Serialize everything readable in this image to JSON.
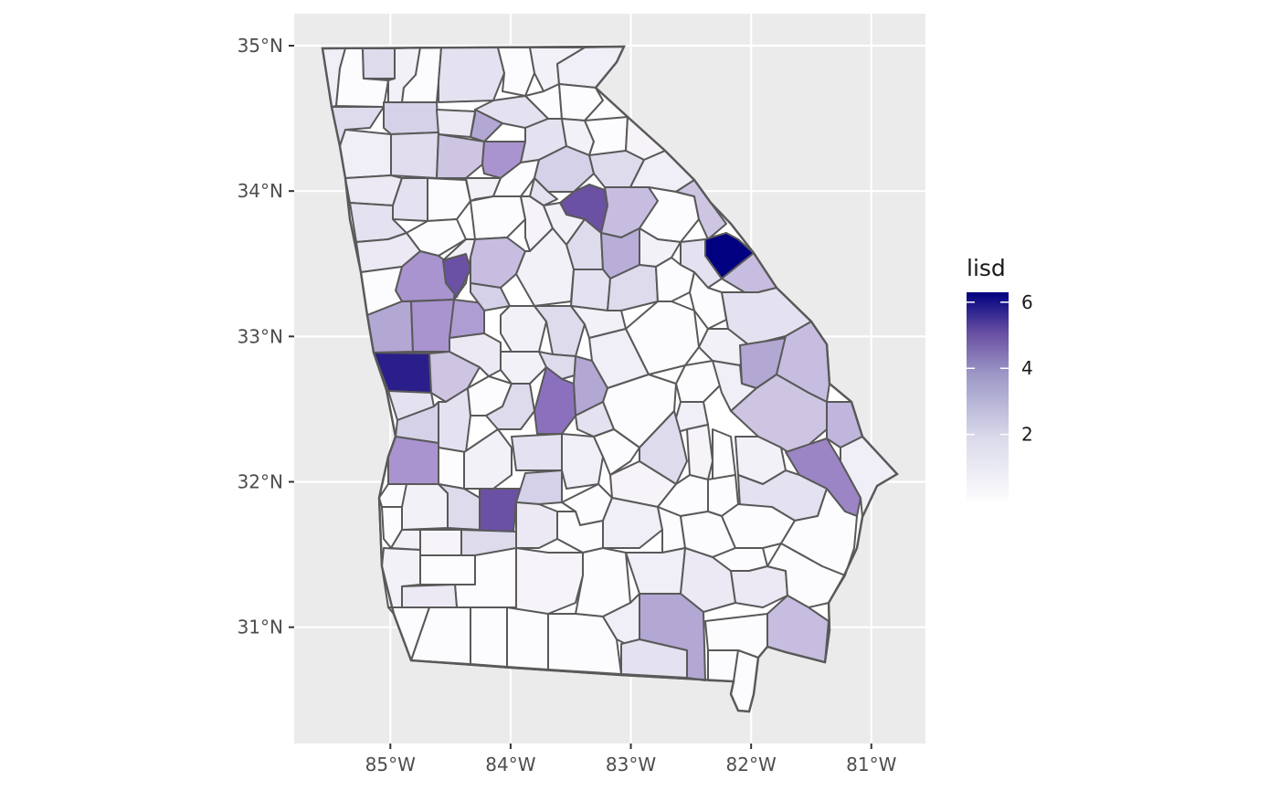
{
  "map": {
    "region": "Georgia counties",
    "fill_variable": "lisd",
    "colors": {
      "panel_background": "#ebebeb",
      "gridline": "#ffffff",
      "county_border": "#595959",
      "scale_low": "#fcfbfd",
      "scale_high": "#000080"
    },
    "axes": {
      "x": {
        "ticks": [
          "85°W",
          "84°W",
          "83°W",
          "82°W",
          "81°W"
        ],
        "values": [
          -85,
          -84,
          -83,
          -82,
          -81
        ],
        "range": [
          -85.8,
          -80.55
        ]
      },
      "y": {
        "ticks": [
          "35°N",
          "34°N",
          "33°N",
          "32°N",
          "31°N"
        ],
        "values": [
          35,
          34,
          33,
          32,
          31
        ],
        "range": [
          30.2,
          35.22
        ]
      }
    },
    "legend": {
      "title": "lisd",
      "position": "right",
      "labels": [
        "6",
        "4",
        "2"
      ],
      "label_values": [
        6,
        4,
        2
      ],
      "range": [
        0,
        6.3
      ]
    }
  }
}
